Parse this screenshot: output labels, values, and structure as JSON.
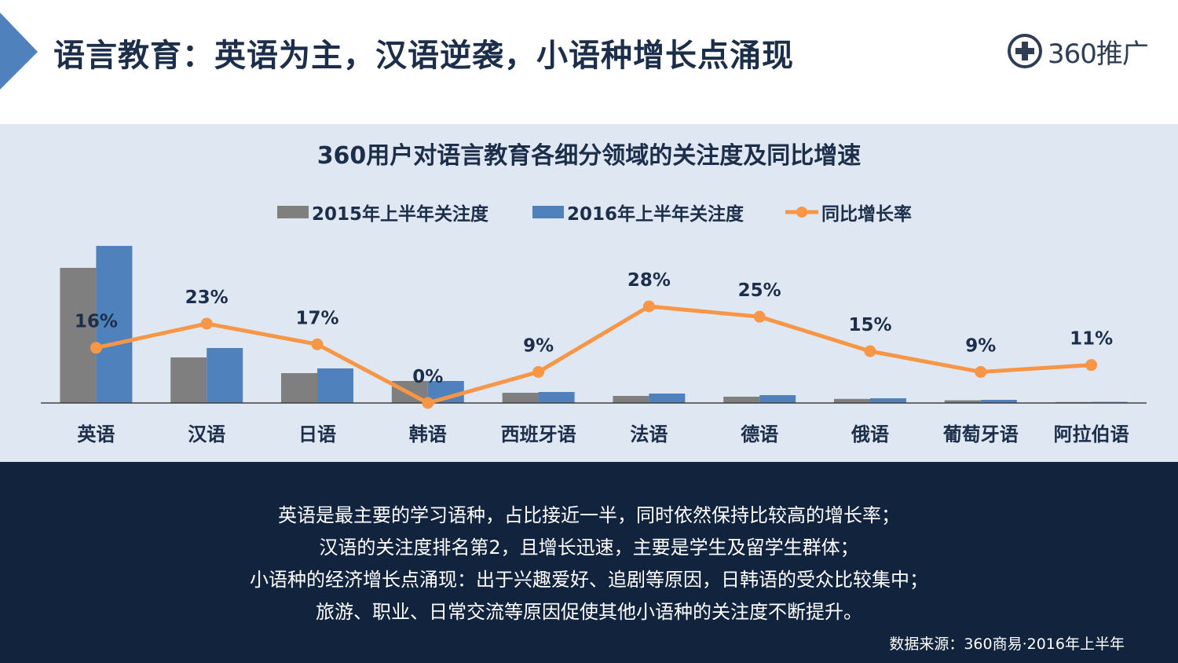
{
  "header": {
    "title": "语言教育：英语为主，汉语逆袭，小语种增长点涌现",
    "logo_text": "360推广"
  },
  "colors": {
    "navy": "#11233d",
    "bar_2015": "#7f7f7f",
    "bar_2016": "#4f81bd",
    "line": "#f79646",
    "panel_bg": "#dfe7f2"
  },
  "chart_data": {
    "type": "bar",
    "title": "360用户对语言教育各细分领域的关注度及同比增速",
    "categories": [
      "英语",
      "汉语",
      "日语",
      "韩语",
      "西班牙语",
      "法语",
      "德语",
      "俄语",
      "葡萄牙语",
      "阿拉伯语"
    ],
    "series": [
      {
        "name": "2015年上半年关注度",
        "type": "bar",
        "values": [
          86,
          29,
          19,
          14,
          6.5,
          4.5,
          4,
          2.6,
          1.7,
          0.6
        ]
      },
      {
        "name": "2016年上半年关注度",
        "type": "bar",
        "values": [
          100,
          35,
          22,
          14,
          7,
          6,
          5,
          3,
          2,
          0.7
        ]
      },
      {
        "name": "同比增长率",
        "type": "line",
        "values": [
          16,
          23,
          17,
          0,
          9,
          28,
          25,
          15,
          9,
          11
        ],
        "labels": [
          "16%",
          "23%",
          "17%",
          "0%",
          "9%",
          "28%",
          "25%",
          "15%",
          "9%",
          "11%"
        ]
      }
    ],
    "bar_ylim": [
      0,
      100
    ],
    "line_ylim": [
      0,
      28
    ],
    "legend_position": "top"
  },
  "summary": {
    "lines": [
      "英语是最主要的学习语种，占比接近一半，同时依然保持比较高的增长率；",
      "汉语的关注度排名第2，且增长迅速，主要是学生及留学生群体；",
      "小语种的经济增长点涌现：出于兴趣爱好、追剧等原因，日韩语的受众比较集中；",
      "旅游、职业、日常交流等原因促使其他小语种的关注度不断提升。"
    ],
    "source": "数据来源：360商易·2016年上半年"
  }
}
